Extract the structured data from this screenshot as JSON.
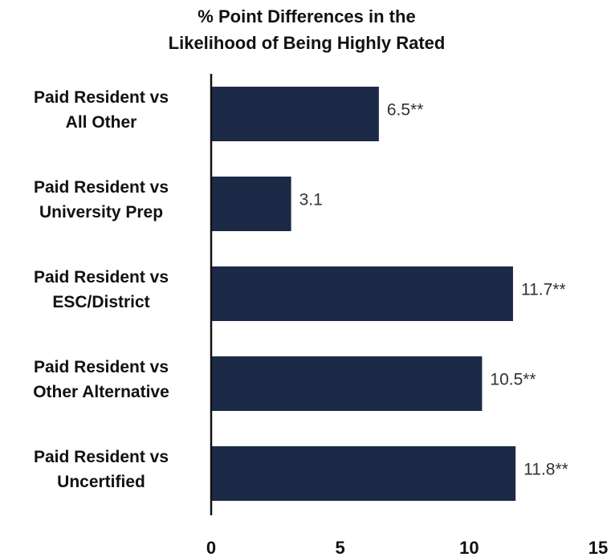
{
  "chart_data": {
    "type": "bar",
    "orientation": "horizontal",
    "title": [
      "% Point Differences in the",
      "Likelihood of Being Highly Rated"
    ],
    "categories": [
      [
        "Paid Resident vs",
        "All Other"
      ],
      [
        "Paid Resident vs",
        "University Prep"
      ],
      [
        "Paid Resident vs",
        "ESC/District"
      ],
      [
        "Paid Resident vs",
        "Other Alternative"
      ],
      [
        "Paid Resident vs",
        "Uncertified"
      ]
    ],
    "values": [
      6.5,
      3.1,
      11.7,
      10.5,
      11.8
    ],
    "value_labels": [
      "6.5**",
      "3.1",
      "11.7**",
      "10.5**",
      "11.8**"
    ],
    "color": "#1c2a48",
    "xlim": [
      0,
      15
    ],
    "xticks": [
      0,
      5,
      10,
      15
    ],
    "grid": false
  }
}
